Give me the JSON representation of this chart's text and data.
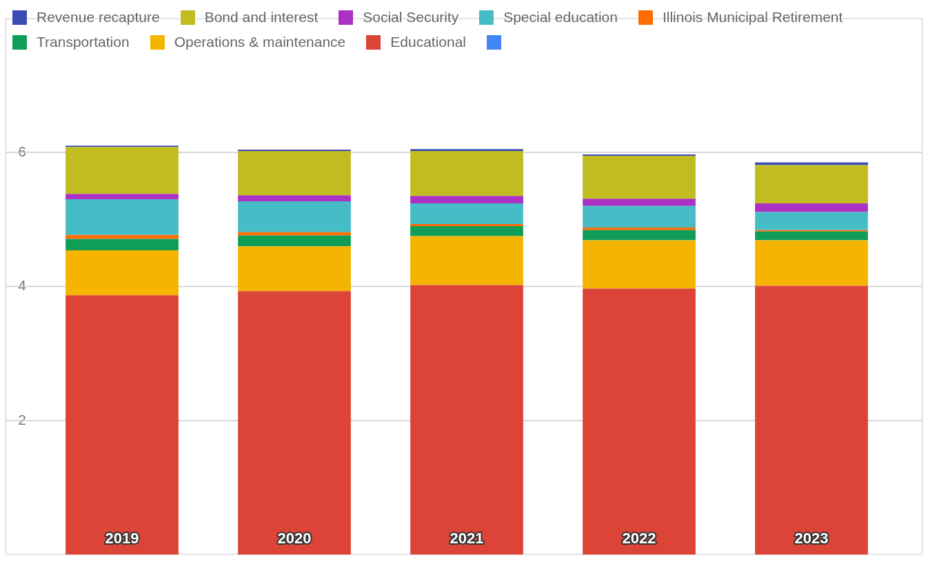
{
  "chart_data": {
    "type": "bar",
    "stacked": true,
    "categories": [
      "2019",
      "2020",
      "2021",
      "2022",
      "2023"
    ],
    "series": [
      {
        "name": "Educational",
        "color": "#db4437",
        "values": [
          3.87,
          3.93,
          4.02,
          3.97,
          4.01
        ]
      },
      {
        "name": "Operations & maintenance",
        "color": "#f4b400",
        "values": [
          0.67,
          0.67,
          0.73,
          0.72,
          0.68
        ]
      },
      {
        "name": "Transportation",
        "color": "#0f9d58",
        "values": [
          0.17,
          0.16,
          0.15,
          0.15,
          0.13
        ]
      },
      {
        "name": "Illinois Municipal Retirement",
        "color": "#ff6d00",
        "values": [
          0.06,
          0.05,
          0.03,
          0.04,
          0.02
        ]
      },
      {
        "name": "Special education",
        "color": "#46bdc6",
        "values": [
          0.53,
          0.46,
          0.31,
          0.32,
          0.27
        ]
      },
      {
        "name": "Social Security",
        "color": "#ab30c4",
        "values": [
          0.08,
          0.09,
          0.11,
          0.11,
          0.13
        ]
      },
      {
        "name": "Bond and interest",
        "color": "#c1bc1f",
        "values": [
          0.7,
          0.66,
          0.67,
          0.64,
          0.57
        ]
      },
      {
        "name": "Revenue recapture",
        "color": "#3b4cb5",
        "values": [
          0.01,
          0.01,
          0.03,
          0.02,
          0.04
        ]
      }
    ],
    "ylim": [
      0,
      8
    ],
    "yticks": [
      2,
      4,
      6
    ],
    "grid": "y",
    "legend": "top"
  }
}
